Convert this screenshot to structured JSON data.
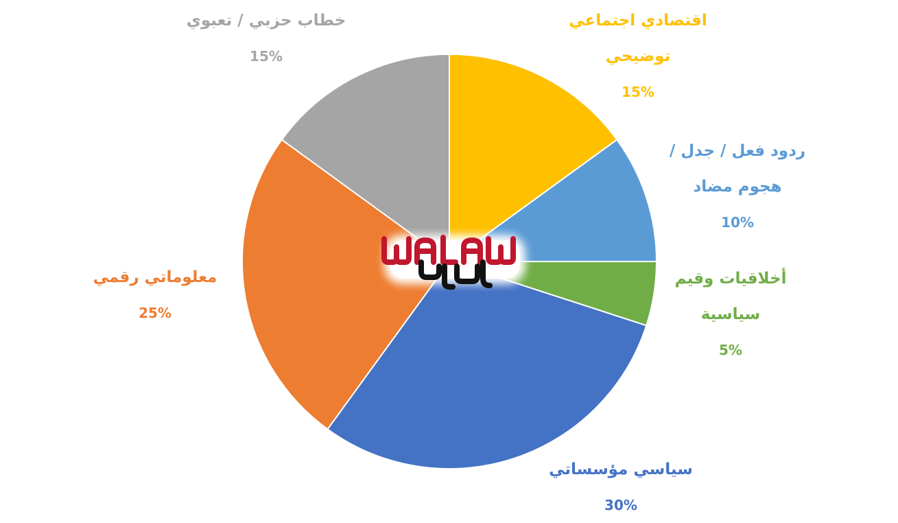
{
  "chart_data": {
    "type": "pie",
    "title": "",
    "slices": [
      {
        "name": "اقتصادي اجتماعي توضيحي",
        "lines": [
          "اقتصادي اجتماعي",
          "توضيحي"
        ],
        "value": 15,
        "label": "15%",
        "color": "#FFC000"
      },
      {
        "name": "ردود فعل / جدل / هجوم مضاد",
        "lines": [
          "ردود فعل / جدل /",
          "هجوم مضاد"
        ],
        "value": 10,
        "label": "10%",
        "color": "#5B9BD5"
      },
      {
        "name": "أخلاقيات وقيم سياسية",
        "lines": [
          "أخلاقيات وقيم",
          "سياسية"
        ],
        "value": 5,
        "label": "5%",
        "color": "#70AD47"
      },
      {
        "name": "سياسي مؤسساتي",
        "lines": [
          "سياسي مؤسساتي"
        ],
        "value": 30,
        "label": "30%",
        "color": "#4472C4"
      },
      {
        "name": "معلوماتي رقمي",
        "lines": [
          "معلوماتي رقمي"
        ],
        "value": 25,
        "label": "25%",
        "color": "#ED7D31"
      },
      {
        "name": "خطاب حزبي / تعبوي",
        "lines": [
          "خطاب حزبي / تعبوي"
        ],
        "value": 15,
        "label": "15%",
        "color": "#A5A5A5"
      }
    ],
    "start_angle_deg": 0,
    "direction": "clockwise",
    "legend": "none",
    "data_labels": "outside"
  },
  "watermark": {
    "text": "WALAW"
  }
}
